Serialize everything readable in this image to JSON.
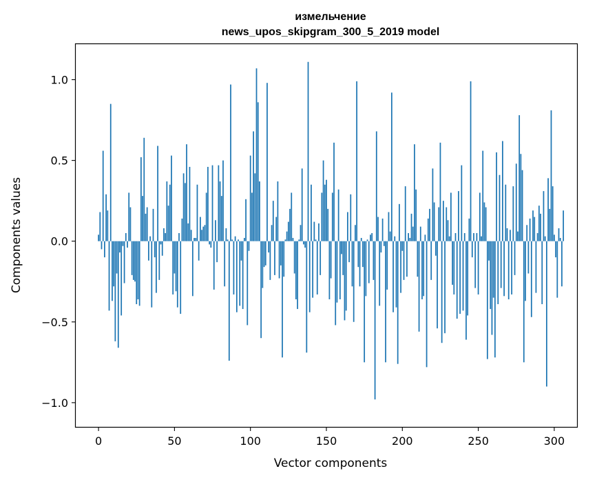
{
  "chart_data": {
    "type": "bar",
    "title": "измельчение",
    "subtitle": "news_upos_skipgram_300_5_2019 model",
    "xlabel": "Vector components",
    "ylabel": "Components values",
    "xlim": [
      -15,
      315
    ],
    "ylim": [
      -1.15,
      1.22
    ],
    "xticks": [
      0,
      50,
      100,
      150,
      200,
      250,
      300
    ],
    "xtick_labels": [
      "0",
      "50",
      "100",
      "150",
      "200",
      "250",
      "300"
    ],
    "yticks": [
      -1.0,
      -0.5,
      0.0,
      0.5,
      1.0
    ],
    "ytick_labels": [
      "−1.0",
      "−0.5",
      "0.0",
      "0.5",
      "1.0"
    ],
    "bar_color": "#1f77b4",
    "values": [
      0.04,
      0.18,
      -0.05,
      0.56,
      -0.1,
      0.29,
      0.19,
      -0.43,
      0.85,
      -0.37,
      -0.28,
      -0.62,
      -0.2,
      -0.66,
      -0.07,
      -0.46,
      -0.03,
      -0.26,
      0.05,
      -0.04,
      0.3,
      0.21,
      -0.21,
      -0.24,
      -0.25,
      -0.39,
      -0.36,
      -0.4,
      0.52,
      0.28,
      0.64,
      0.17,
      0.21,
      -0.12,
      0.03,
      -0.41,
      0.2,
      -0.1,
      -0.32,
      0.59,
      -0.24,
      -0.02,
      -0.09,
      0.08,
      0.05,
      0.37,
      0.22,
      0.35,
      0.53,
      -0.33,
      -0.2,
      -0.31,
      -0.41,
      0.05,
      -0.45,
      0.14,
      0.42,
      0.36,
      0.6,
      0.11,
      0.46,
      0.07,
      -0.34,
      0.02,
      0.02,
      0.35,
      -0.12,
      0.15,
      0.07,
      0.09,
      0.1,
      0.3,
      0.46,
      -0.02,
      -0.04,
      0.47,
      -0.3,
      0.13,
      -0.13,
      0.47,
      0.37,
      0.28,
      0.5,
      -0.28,
      0.08,
      0.01,
      -0.74,
      0.97,
      0.01,
      -0.33,
      0.03,
      -0.44,
      0.01,
      -0.4,
      -0.12,
      -0.42,
      0.02,
      0.26,
      -0.52,
      -0.06,
      0.53,
      0.3,
      0.68,
      0.42,
      1.07,
      0.86,
      0.37,
      -0.6,
      -0.29,
      -0.16,
      -0.15,
      0.98,
      -0.07,
      -0.24,
      0.1,
      0.25,
      -0.21,
      0.15,
      0.37,
      -0.23,
      -0.15,
      -0.72,
      -0.22,
      0.01,
      0.06,
      0.12,
      0.2,
      0.3,
      0.02,
      -0.2,
      -0.36,
      -0.42,
      0.01,
      0.1,
      0.45,
      -0.02,
      -0.04,
      -0.69,
      1.11,
      -0.44,
      0.35,
      -0.35,
      0.12,
      0.01,
      -0.33,
      0.11,
      -0.21,
      0.3,
      0.5,
      0.35,
      0.38,
      0.2,
      -0.36,
      -0.23,
      0.3,
      0.61,
      -0.52,
      -0.38,
      0.32,
      -0.36,
      -0.08,
      -0.21,
      -0.49,
      -0.43,
      0.18,
      -0.13,
      0.29,
      -0.28,
      -0.5,
      0.1,
      0.99,
      -0.16,
      -0.28,
      0.02,
      -0.16,
      -0.75,
      -0.34,
      0.01,
      -0.26,
      0.04,
      0.05,
      -0.24,
      -0.98,
      0.68,
      0.15,
      -0.4,
      -0.07,
      0.14,
      -0.03,
      -0.75,
      -0.3,
      0.18,
      0.06,
      0.92,
      -0.44,
      0.03,
      -0.41,
      -0.76,
      0.23,
      -0.32,
      -0.06,
      -0.24,
      0.34,
      -0.22,
      0.05,
      0.02,
      0.17,
      0.09,
      0.6,
      0.32,
      -0.22,
      -0.56,
      0.09,
      -0.36,
      -0.34,
      0.04,
      -0.78,
      0.14,
      0.2,
      -0.24,
      0.45,
      0.24,
      -0.09,
      -0.54,
      0.21,
      0.61,
      -0.63,
      0.25,
      -0.57,
      0.21,
      0.13,
      0.03,
      0.3,
      -0.27,
      -0.33,
      0.05,
      -0.48,
      0.31,
      -0.45,
      0.47,
      -0.43,
      0.05,
      -0.61,
      -0.46,
      0.14,
      0.99,
      -0.1,
      0.05,
      -0.29,
      0.05,
      -0.33,
      0.3,
      0.03,
      0.56,
      0.24,
      0.21,
      -0.73,
      -0.12,
      -0.42,
      -0.58,
      -0.35,
      -0.72,
      0.55,
      -0.39,
      0.41,
      -0.29,
      0.62,
      -0.34,
      0.35,
      0.08,
      -0.36,
      0.07,
      -0.33,
      0.34,
      -0.21,
      0.48,
      0.06,
      0.78,
      0.54,
      0.44,
      -0.75,
      -0.37,
      0.1,
      -0.2,
      0.14,
      -0.47,
      0.19,
      0.15,
      -0.32,
      0.05,
      0.22,
      0.17,
      -0.39,
      0.31,
      0.03,
      -0.9,
      0.39,
      0.2,
      0.81,
      0.34,
      0.04,
      -0.1,
      -0.35,
      0.08,
      0.02,
      -0.28,
      0.19
    ]
  }
}
